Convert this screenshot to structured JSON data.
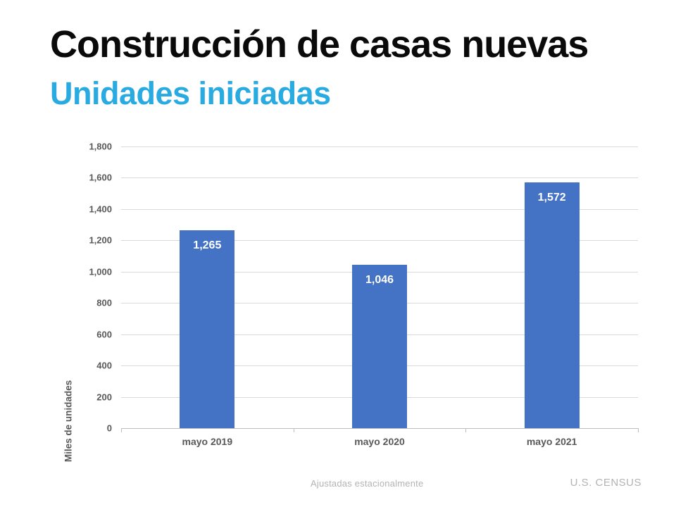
{
  "header": {
    "title": "Construcción de casas nuevas",
    "subtitle": "Unidades iniciadas"
  },
  "chart_data": {
    "type": "bar",
    "categories": [
      "mayo 2019",
      "mayo 2020",
      "mayo 2021"
    ],
    "values": [
      1265,
      1046,
      1572
    ],
    "value_labels": [
      "1,265",
      "1,046",
      "1,572"
    ],
    "title": "",
    "xlabel": "",
    "ylabel": "Miles de unidades",
    "ylim": [
      0,
      1800
    ],
    "ytick_step": 200,
    "ytick_labels": [
      "0",
      "200",
      "400",
      "600",
      "800",
      "1,000",
      "1,200",
      "1,400",
      "1,600",
      "1,800"
    ],
    "grid": true,
    "legend": false,
    "bar_color": "#4472C4",
    "value_label_color": "#ffffff"
  },
  "footer": {
    "note": "Ajustadas estacionalmente",
    "source": "U.S. CENSUS"
  },
  "colors": {
    "title_text": "#0a0a0a",
    "subtitle_accent": "#29ABE2",
    "bar": "#4472C4",
    "gridline": "#d9d9d9",
    "axis_line": "#bdbdbd",
    "axis_text": "#595959",
    "footer_text": "#b3b3b3"
  }
}
